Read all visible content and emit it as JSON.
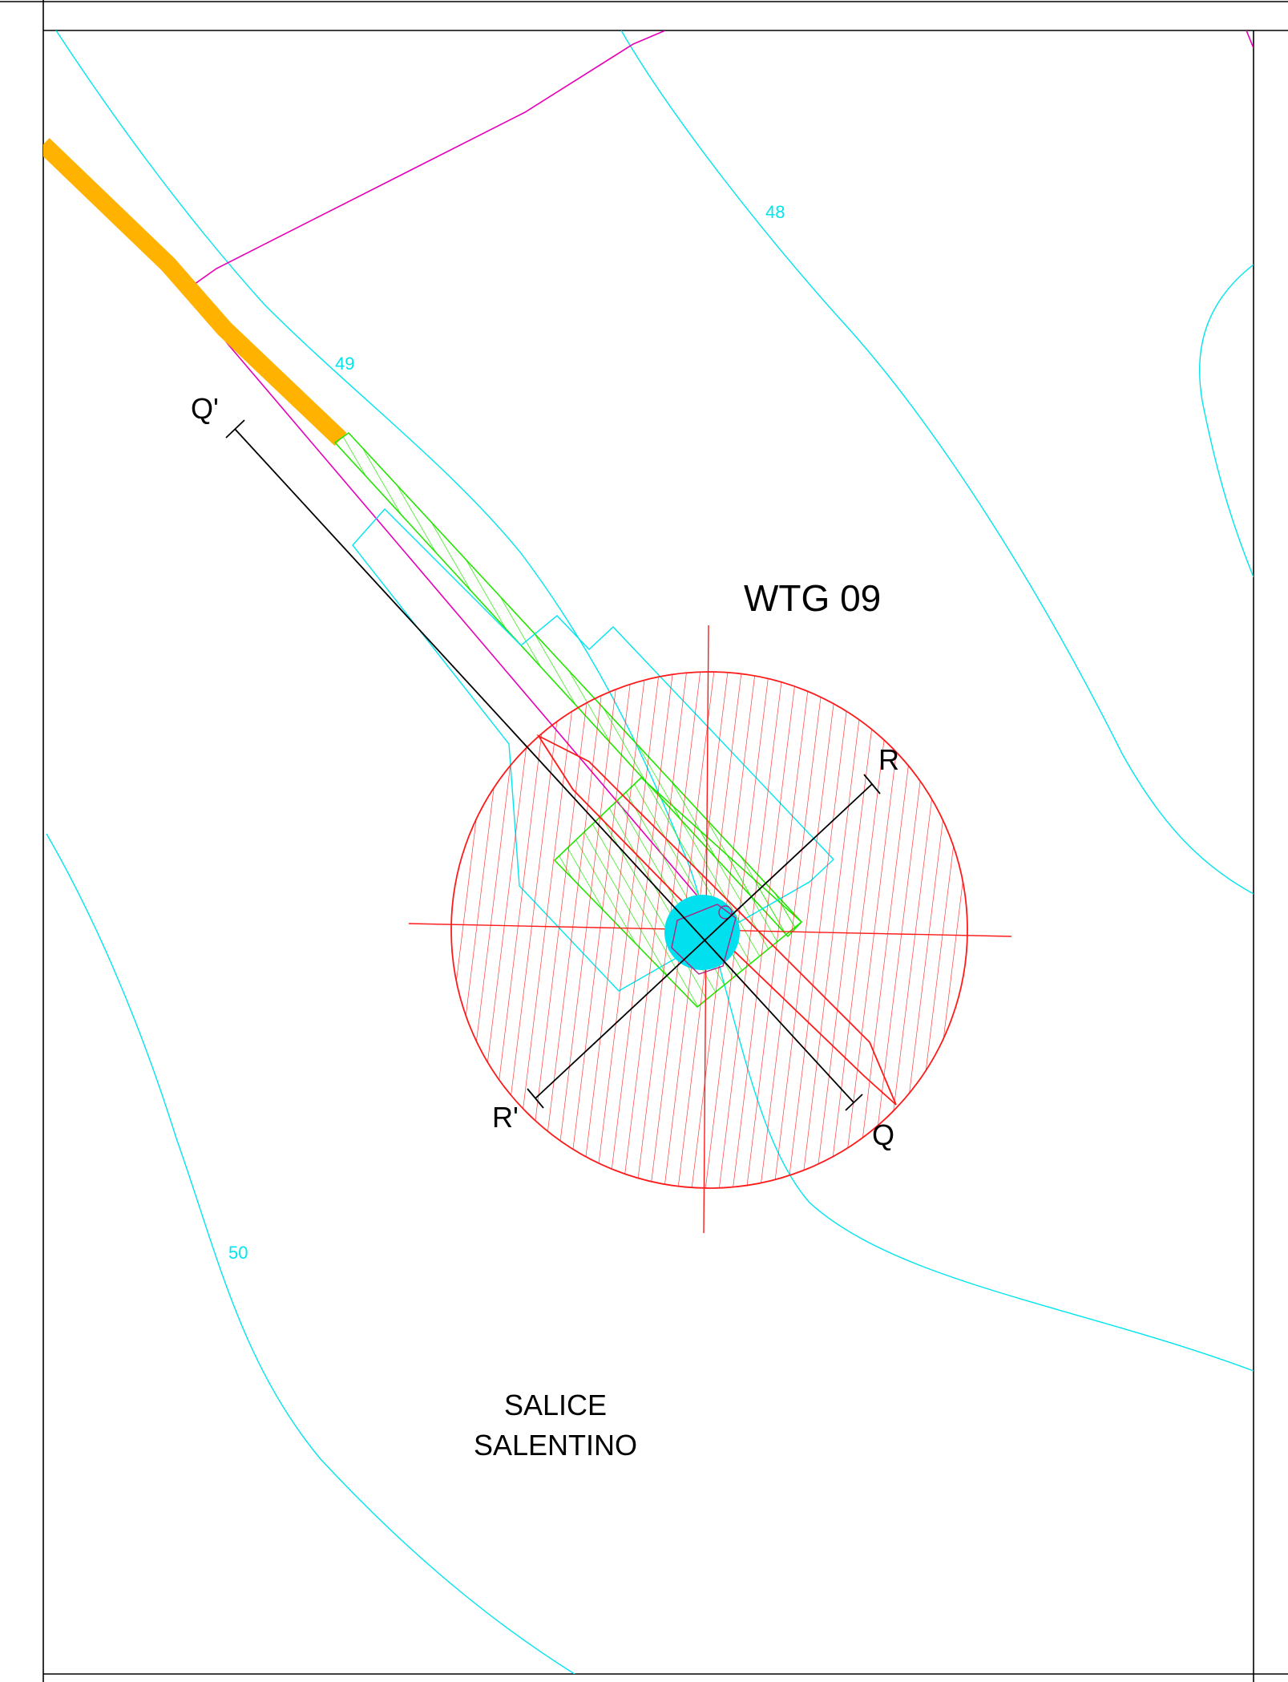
{
  "site": {
    "turbine_label": "WTG 09",
    "municipality_line1": "SALICE",
    "municipality_line2": "SALENTINO"
  },
  "contours": [
    {
      "value": "48"
    },
    {
      "value": "49"
    },
    {
      "value": "50"
    }
  ],
  "sections": {
    "q_start": "Q'",
    "q_end": "Q",
    "r_start": "R",
    "r_end": "R'"
  },
  "colors": {
    "contour": "#00e5ee",
    "parcel": "#e600b8",
    "road": "#ffb300",
    "access": "#22e600",
    "rotor": "#ff1a1a",
    "section": "#000000",
    "foundation": "#00e0ee"
  }
}
